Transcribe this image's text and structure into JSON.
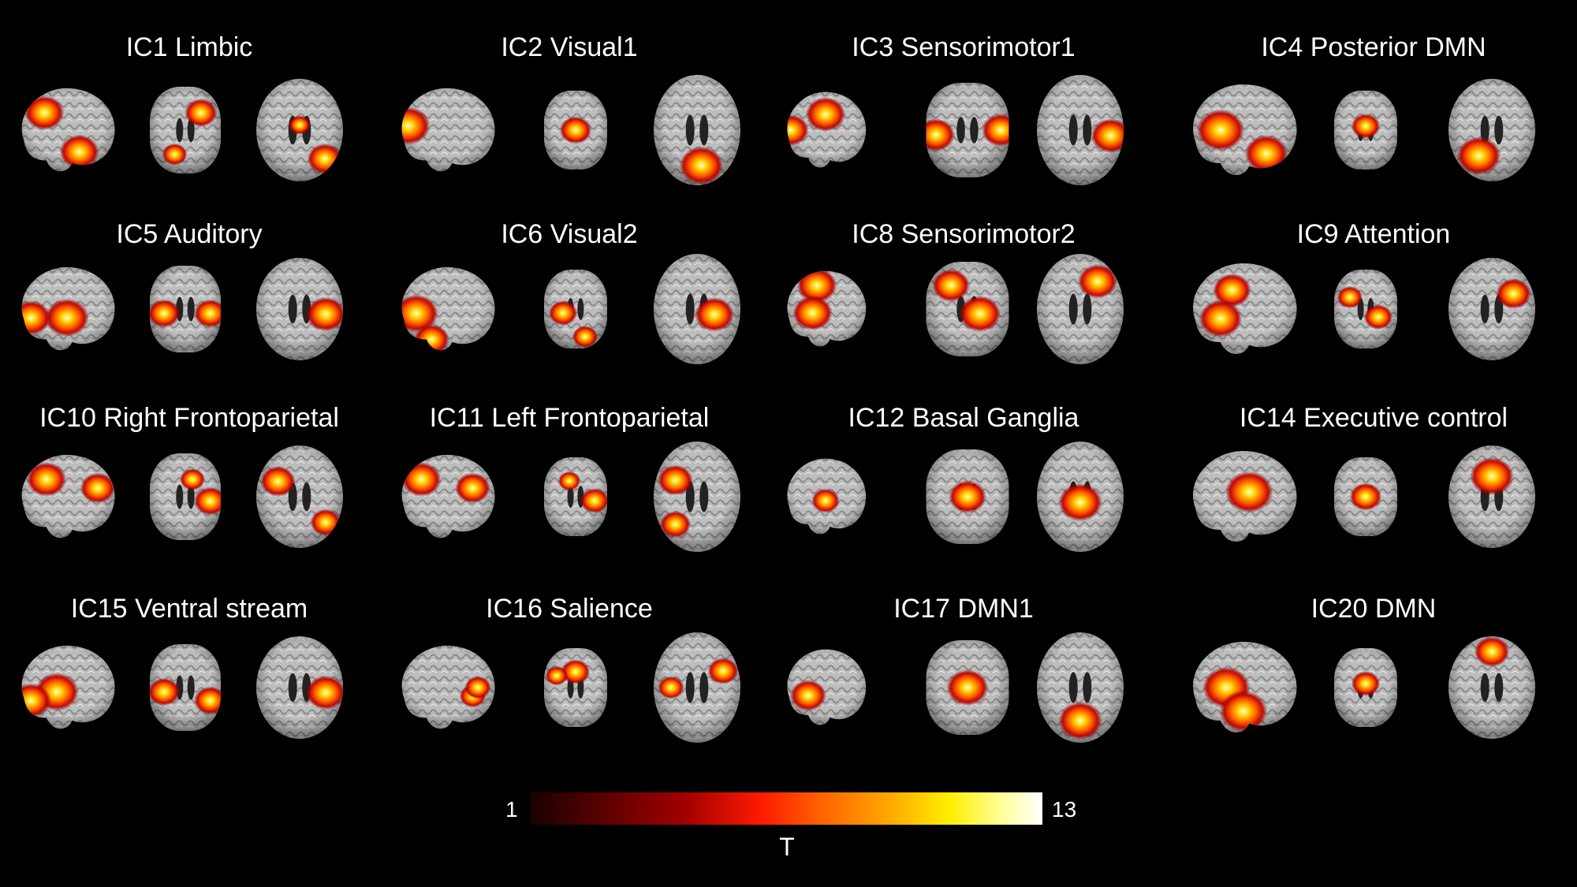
{
  "figure": {
    "components": [
      {
        "label": "IC1 Limbic",
        "blobs": [
          [
            0.62,
            0.75,
            0.9
          ],
          [
            0.35,
            0.78,
            0.7
          ],
          [
            0.79,
            0.78,
            0.8
          ],
          [
            0.28,
            0.3,
            0.9
          ],
          [
            0.72,
            0.3,
            0.9
          ],
          [
            0.5,
            0.45,
            0.5
          ]
        ]
      },
      {
        "label": "IC2 Visual1",
        "blobs": [
          [
            0.12,
            0.45,
            1.0
          ],
          [
            0.5,
            0.5,
            1.0
          ],
          [
            0.55,
            0.82,
            1.0
          ]
        ]
      },
      {
        "label": "IC3 Sensorimotor1",
        "blobs": [
          [
            0.5,
            0.3,
            1.0
          ],
          [
            0.12,
            0.55,
            0.9
          ],
          [
            0.85,
            0.55,
            0.9
          ],
          [
            0.1,
            0.5,
            0.9
          ],
          [
            0.9,
            0.5,
            0.9
          ]
        ]
      },
      {
        "label": "IC4 Posterior DMN",
        "blobs": [
          [
            0.3,
            0.5,
            1.0
          ],
          [
            0.5,
            0.45,
            0.9
          ],
          [
            0.35,
            0.75,
            1.0
          ],
          [
            0.7,
            0.75,
            0.9
          ]
        ]
      },
      {
        "label": "IC5 Auditory",
        "blobs": [
          [
            0.5,
            0.6,
            1.0
          ],
          [
            0.2,
            0.55,
            0.9
          ],
          [
            0.8,
            0.55,
            0.9
          ],
          [
            0.15,
            0.6,
            0.9
          ],
          [
            0.85,
            0.55,
            0.9
          ]
        ]
      },
      {
        "label": "IC6 Visual2",
        "blobs": [
          [
            0.2,
            0.55,
            1.0
          ],
          [
            0.3,
            0.55,
            0.9
          ],
          [
            0.7,
            0.55,
            0.9
          ],
          [
            0.35,
            0.85,
            0.8
          ],
          [
            0.65,
            0.85,
            0.8
          ]
        ]
      },
      {
        "label": "IC8 Sensorimotor2",
        "blobs": [
          [
            0.4,
            0.2,
            1.0
          ],
          [
            0.3,
            0.25,
            0.9
          ],
          [
            0.7,
            0.25,
            0.9
          ],
          [
            0.35,
            0.55,
            1.0
          ],
          [
            0.65,
            0.55,
            1.0
          ]
        ]
      },
      {
        "label": "IC9 Attention",
        "blobs": [
          [
            0.4,
            0.3,
            0.8
          ],
          [
            0.25,
            0.35,
            0.8
          ],
          [
            0.75,
            0.35,
            0.8
          ],
          [
            0.3,
            0.6,
            0.9
          ],
          [
            0.7,
            0.6,
            0.9
          ]
        ]
      },
      {
        "label": "IC10 Right Frontoparietal",
        "blobs": [
          [
            0.3,
            0.3,
            0.9
          ],
          [
            0.85,
            0.55,
            0.9
          ],
          [
            0.25,
            0.35,
            0.8
          ],
          [
            0.8,
            0.4,
            0.8
          ],
          [
            0.6,
            0.3,
            0.7
          ],
          [
            0.8,
            0.75,
            0.7
          ]
        ]
      },
      {
        "label": "IC11 Left Frontoparietal",
        "blobs": [
          [
            0.25,
            0.3,
            0.9
          ],
          [
            0.8,
            0.55,
            0.9
          ],
          [
            0.25,
            0.35,
            0.8
          ],
          [
            0.75,
            0.4,
            0.8
          ],
          [
            0.4,
            0.3,
            0.7
          ],
          [
            0.25,
            0.75,
            0.7
          ]
        ]
      },
      {
        "label": "IC12 Basal Ganglia",
        "blobs": [
          [
            0.5,
            0.55,
            0.7
          ],
          [
            0.5,
            0.5,
            0.9
          ],
          [
            0.5,
            0.55,
            1.0
          ]
        ]
      },
      {
        "label": "IC14 Executive control",
        "blobs": [
          [
            0.55,
            0.45,
            1.0
          ],
          [
            0.5,
            0.5,
            1.0
          ],
          [
            0.5,
            0.3,
            1.0
          ]
        ]
      },
      {
        "label": "IC15 Ventral stream",
        "blobs": [
          [
            0.4,
            0.55,
            1.0
          ],
          [
            0.2,
            0.55,
            0.9
          ],
          [
            0.8,
            0.55,
            0.9
          ],
          [
            0.15,
            0.65,
            0.9
          ],
          [
            0.85,
            0.65,
            0.9
          ]
        ]
      },
      {
        "label": "IC16 Salience",
        "blobs": [
          [
            0.75,
            0.6,
            0.6
          ],
          [
            0.5,
            0.3,
            0.9
          ],
          [
            0.2,
            0.5,
            0.6
          ],
          [
            0.8,
            0.5,
            0.6
          ],
          [
            0.2,
            0.35,
            0.7
          ],
          [
            0.8,
            0.35,
            0.7
          ]
        ]
      },
      {
        "label": "IC17 DMN1",
        "blobs": [
          [
            0.3,
            0.6,
            0.9
          ],
          [
            0.5,
            0.5,
            1.0
          ],
          [
            0.5,
            0.8,
            1.0
          ]
        ]
      },
      {
        "label": "IC20 DMN",
        "blobs": [
          [
            0.35,
            0.5,
            1.0
          ],
          [
            0.5,
            0.45,
            0.9
          ],
          [
            0.5,
            0.15,
            0.8
          ],
          [
            0.5,
            0.75,
            1.0
          ]
        ]
      }
    ]
  },
  "colorbar": {
    "label": "T",
    "min_label": "1",
    "max_label": "13",
    "colormap": [
      "#1a0000",
      "#a00000",
      "#ff1a00",
      "#ff6a00",
      "#ffa800",
      "#fff000",
      "#ffffff"
    ]
  }
}
